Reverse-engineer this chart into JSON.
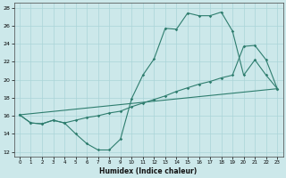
{
  "xlabel": "Humidex (Indice chaleur)",
  "bg_color": "#cce8ea",
  "line_color": "#2e7d6e",
  "grid_color": "#aad4d8",
  "xlim": [
    -0.5,
    23.5
  ],
  "ylim": [
    11.5,
    28.5
  ],
  "yticks": [
    12,
    14,
    16,
    18,
    20,
    22,
    24,
    26,
    28
  ],
  "xticks": [
    0,
    1,
    2,
    3,
    4,
    5,
    6,
    7,
    8,
    9,
    10,
    11,
    12,
    13,
    14,
    15,
    16,
    17,
    18,
    19,
    20,
    21,
    22,
    23
  ],
  "line1_x": [
    0,
    1,
    2,
    3,
    4,
    5,
    6,
    7,
    8,
    9,
    10,
    11,
    12,
    13,
    14,
    15,
    16,
    17,
    18,
    19,
    20,
    21,
    22,
    23
  ],
  "line1_y": [
    16.1,
    15.2,
    15.1,
    15.5,
    15.2,
    14.0,
    12.9,
    12.2,
    12.2,
    13.4,
    17.9,
    20.5,
    22.3,
    25.7,
    25.6,
    27.4,
    27.1,
    27.1,
    27.5,
    25.4,
    20.5,
    22.2,
    20.5,
    19.0
  ],
  "line2_x": [
    0,
    1,
    2,
    3,
    4,
    5,
    6,
    7,
    8,
    9,
    10,
    11,
    12,
    13,
    14,
    15,
    16,
    17,
    18,
    19,
    20,
    21,
    22,
    23
  ],
  "line2_y": [
    16.1,
    15.2,
    15.1,
    15.5,
    15.2,
    15.5,
    15.8,
    16.0,
    16.3,
    16.5,
    17.0,
    17.4,
    17.8,
    18.2,
    18.7,
    19.1,
    19.5,
    19.8,
    20.2,
    20.5,
    23.7,
    23.8,
    22.2,
    19.0
  ],
  "line3_x": [
    0,
    23
  ],
  "line3_y": [
    16.1,
    19.0
  ]
}
